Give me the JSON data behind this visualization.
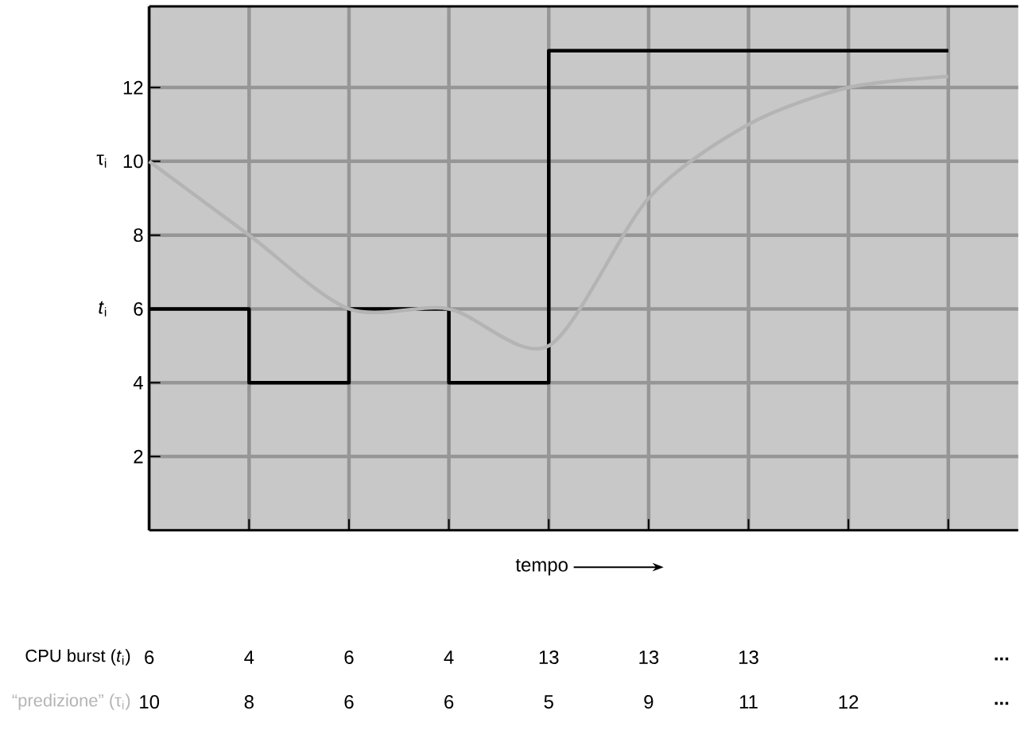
{
  "chart_data": {
    "type": "line",
    "xlabel": "tempo",
    "categories": [
      null,
      null,
      null,
      null,
      null,
      null,
      null,
      null,
      null
    ],
    "ylim": [
      0,
      14.2
    ],
    "yticks": [
      2,
      4,
      6,
      8,
      10,
      12
    ],
    "grid": true,
    "series": [
      {
        "name": "CPU burst (*t*$_{i}$)",
        "type": "step",
        "color": "#000000",
        "values": [
          6,
          4,
          6,
          4,
          13,
          13,
          13,
          13,
          13
        ],
        "value_labels": [
          "6",
          "4",
          "6",
          "4",
          "13",
          "13",
          "13",
          null,
          null
        ]
      },
      {
        "name": "“predizione” (τ$_{i}$)",
        "color": "#b4b4b4",
        "values": [
          10,
          8,
          6,
          6,
          5,
          9,
          11,
          12,
          12.3
        ],
        "value_labels": [
          "10",
          "8",
          "6",
          "6",
          "5",
          "9",
          "11",
          "12",
          null
        ]
      }
    ],
    "annotations": [
      "τ$_{i}$",
      "*t*$_{i}$",
      "...",
      "..."
    ]
  }
}
